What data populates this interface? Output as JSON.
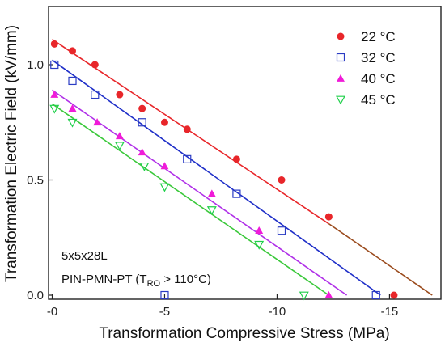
{
  "chart_data": {
    "type": "scatter",
    "xlabel": "Transformation Compressive Stress (MPa)",
    "ylabel": "Transformation Electric Field (kV/mm)",
    "xlim": [
      0,
      -17
    ],
    "ylim": [
      -0.03,
      1.25
    ],
    "x_ticks": [
      {
        "value": 0,
        "label": "-0"
      },
      {
        "value": -5,
        "label": "-5"
      },
      {
        "value": -10,
        "label": "-10"
      },
      {
        "value": -15,
        "label": "-15"
      }
    ],
    "y_ticks": [
      {
        "value": 0.0,
        "label": "0.0"
      },
      {
        "value": 0.5,
        "label": "0.5"
      },
      {
        "value": 1.0,
        "label": "1.0"
      }
    ],
    "grid": false,
    "legend_position": "top-right",
    "annotations": {
      "line1": "5x5x28L",
      "line2_prefix": "PIN-PMN-PT (T",
      "line2_sub": "RO",
      "line2_suffix": " > 110°C)"
    },
    "series": [
      {
        "name": "22 °C",
        "marker": "filled-circle",
        "color": "#e8262a",
        "points": [
          [
            -0.1,
            1.09
          ],
          [
            -0.9,
            1.06
          ],
          [
            -1.9,
            1.0
          ],
          [
            -3.0,
            0.87
          ],
          [
            -4.0,
            0.81
          ],
          [
            -5.0,
            0.75
          ],
          [
            -6.0,
            0.72
          ],
          [
            -8.2,
            0.59
          ],
          [
            -10.2,
            0.5
          ],
          [
            -12.3,
            0.34
          ],
          [
            -15.2,
            0.0
          ]
        ],
        "fit": [
          [
            0,
            1.11
          ],
          [
            -12.3,
            0.31
          ]
        ],
        "fit_color": "#e8262a",
        "fit_ext": [
          [
            -12.3,
            0.31
          ],
          [
            -16.9,
            0.0
          ]
        ],
        "fit_ext_color": "#9a4a1c"
      },
      {
        "name": "32 °C",
        "marker": "open-square",
        "color": "#2b3cc4",
        "points": [
          [
            -0.1,
            1.0
          ],
          [
            -0.9,
            0.93
          ],
          [
            -1.9,
            0.87
          ],
          [
            -4.0,
            0.75
          ],
          [
            -5.0,
            0.0
          ],
          [
            -6.0,
            0.59
          ],
          [
            -8.2,
            0.44
          ],
          [
            -10.2,
            0.28
          ],
          [
            -14.4,
            0.0
          ]
        ],
        "fit": [
          [
            0,
            1.02
          ],
          [
            -14.6,
            0.0
          ]
        ],
        "fit_color": "#1f2fc8"
      },
      {
        "name": "40 °C",
        "marker": "filled-triangle",
        "color": "#f01bd8",
        "points": [
          [
            -0.1,
            0.87
          ],
          [
            -0.9,
            0.81
          ],
          [
            -2.0,
            0.75
          ],
          [
            -3.0,
            0.69
          ],
          [
            -4.0,
            0.62
          ],
          [
            -5.0,
            0.56
          ],
          [
            -7.1,
            0.44
          ],
          [
            -9.2,
            0.28
          ],
          [
            -12.3,
            0.0
          ]
        ],
        "fit": [
          [
            0,
            0.89
          ],
          [
            -13.1,
            0.0
          ]
        ],
        "fit_color": "#b030e8"
      },
      {
        "name": "45 °C",
        "marker": "open-triangle-down",
        "color": "#1fd04a",
        "points": [
          [
            -0.1,
            0.81
          ],
          [
            -0.9,
            0.75
          ],
          [
            -3.0,
            0.65
          ],
          [
            -4.1,
            0.56
          ],
          [
            -5.0,
            0.47
          ],
          [
            -7.1,
            0.37
          ],
          [
            -9.2,
            0.22
          ],
          [
            -11.2,
            0.0
          ]
        ],
        "fit": [
          [
            0,
            0.83
          ],
          [
            -12.3,
            0.0
          ]
        ],
        "fit_color": "#3ac83a"
      }
    ]
  }
}
